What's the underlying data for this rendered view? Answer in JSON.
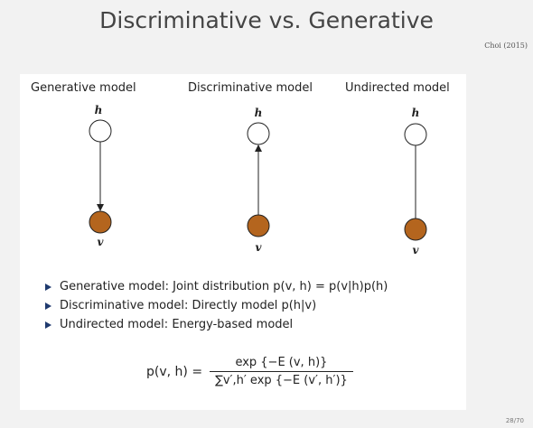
{
  "slide": {
    "title": "Discriminative vs. Generative",
    "citation": "Choi (2015)",
    "page": "28/70"
  },
  "models": [
    {
      "label": "Generative model",
      "top_node": "h",
      "bottom_node": "v",
      "edge": "directed-down"
    },
    {
      "label": "Discriminative model",
      "top_node": "h",
      "bottom_node": "v",
      "edge": "directed-up"
    },
    {
      "label": "Undirected model",
      "top_node": "h",
      "bottom_node": "v",
      "edge": "undirected"
    }
  ],
  "colors": {
    "observed_node": "#b4651e",
    "hidden_node": "#ffffff",
    "bullet_marker": "#1f3a6e"
  },
  "bullets": [
    {
      "label": "Generative model:",
      "text": "Joint distribution p(v, h) = p(v|h)p(h)"
    },
    {
      "label": "Discriminative model:",
      "text": "Directly model p(h|v)"
    },
    {
      "label": "Undirected model:",
      "text": "Energy-based model"
    }
  ],
  "formula": {
    "lhs": "p(v, h) =",
    "numerator": "exp {−E (v, h)}",
    "denominator": "∑v′,h′ exp {−E (v′, h′)}"
  }
}
